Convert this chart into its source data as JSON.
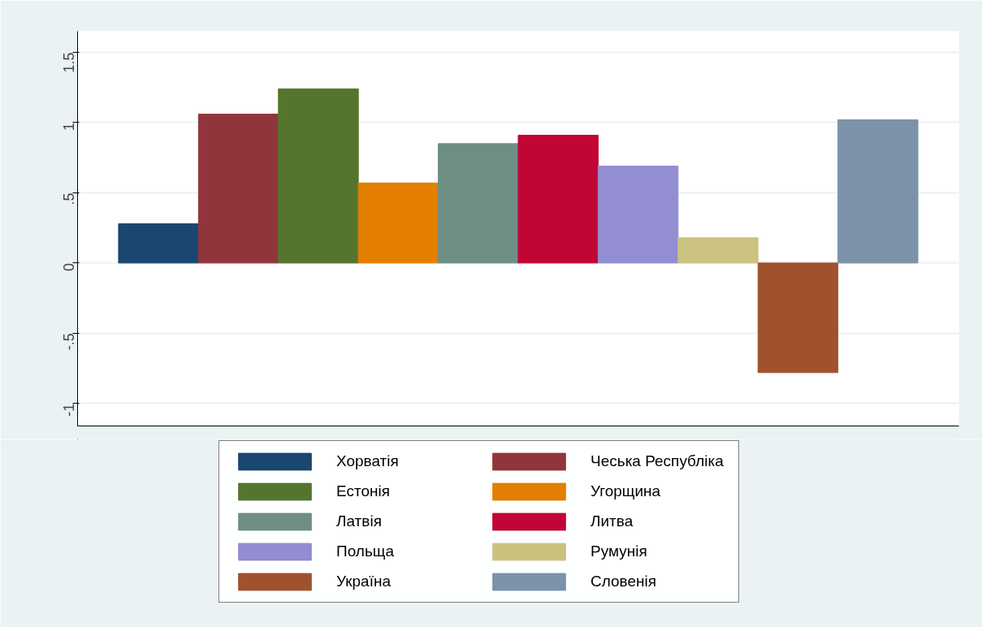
{
  "chart_data": {
    "type": "bar",
    "categories": [
      null
    ],
    "series": [
      {
        "name": "Хорватія",
        "color": "#1a476f",
        "values": [
          0.28
        ]
      },
      {
        "name": "Чеська Республіка",
        "color": "#90353b",
        "values": [
          1.06
        ]
      },
      {
        "name": "Естонія",
        "color": "#55752f",
        "values": [
          1.24
        ]
      },
      {
        "name": "Угорщина",
        "color": "#e37e00",
        "values": [
          0.57
        ]
      },
      {
        "name": "Латвія",
        "color": "#6e8e84",
        "values": [
          0.85
        ]
      },
      {
        "name": "Литва",
        "color": "#c10534",
        "values": [
          0.91
        ]
      },
      {
        "name": "Польща",
        "color": "#938dd2",
        "values": [
          0.69
        ]
      },
      {
        "name": "Румунія",
        "color": "#cac27e",
        "values": [
          0.18
        ]
      },
      {
        "name": "Україна",
        "color": "#a0522d",
        "values": [
          -0.78
        ]
      },
      {
        "name": "Словенія",
        "color": "#7b92a8",
        "values": [
          1.02
        ]
      }
    ],
    "ylim": [
      -1.16,
      1.65
    ],
    "yticks": [
      {
        "value": -1,
        "label": "-1"
      },
      {
        "value": -0.5,
        "label": "-.5"
      },
      {
        "value": 0,
        "label": "0"
      },
      {
        "value": 0.5,
        "label": ".5"
      },
      {
        "value": 1,
        "label": "1"
      },
      {
        "value": 1.5,
        "label": "1.5"
      }
    ],
    "grid": "y",
    "legend": "bottom",
    "tick_labels": "y"
  }
}
